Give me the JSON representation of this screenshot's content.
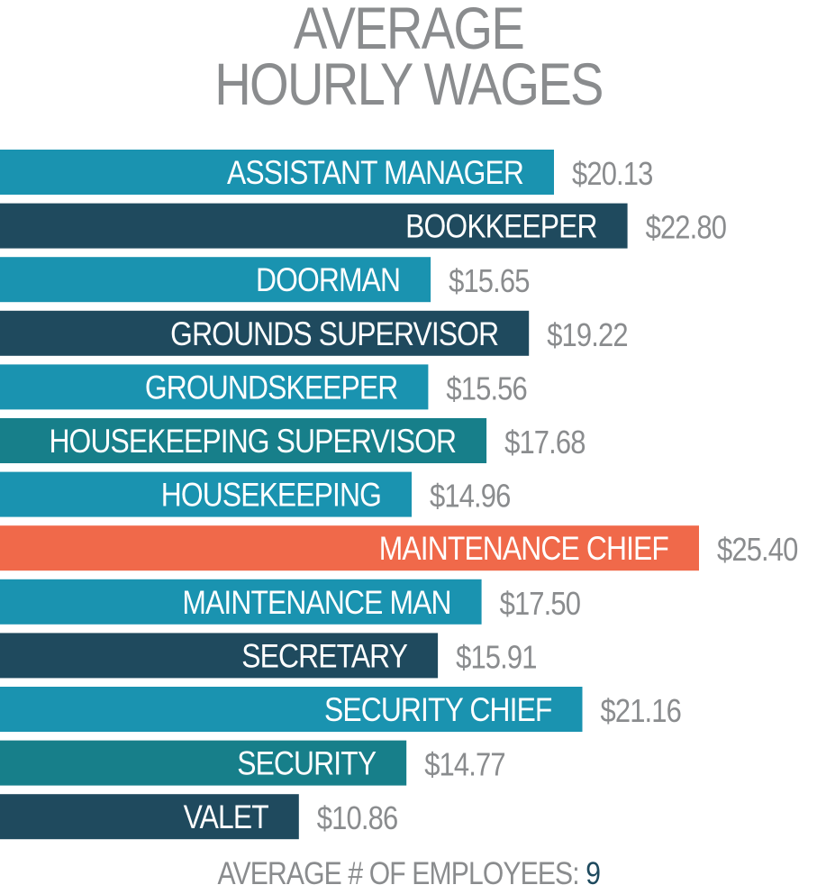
{
  "chart_data": {
    "type": "bar",
    "orientation": "horizontal",
    "title_lines": [
      "AVERAGE",
      "HOURLY WAGES"
    ],
    "categories": [
      "ASSISTANT MANAGER",
      "BOOKKEEPER",
      "DOORMAN",
      "GROUNDS SUPERVISOR",
      "GROUNDSKEEPER",
      "HOUSEKEEPING SUPERVISOR",
      "HOUSEKEEPING",
      "MAINTENANCE CHIEF",
      "MAINTENANCE MAN",
      "SECRETARY",
      "SECURITY CHIEF",
      "SECURITY",
      "VALET"
    ],
    "values": [
      20.13,
      22.8,
      15.65,
      19.22,
      15.56,
      17.68,
      14.96,
      25.4,
      17.5,
      15.91,
      21.16,
      14.77,
      10.86
    ],
    "value_labels": [
      "$20.13",
      "$22.80",
      "$15.65",
      "$19.22",
      "$15.56",
      "$17.68",
      "$14.96",
      "$25.40",
      "$17.50",
      "$15.91",
      "$21.16",
      "$14.77",
      "$10.86"
    ],
    "bar_colors": [
      "#1a93b0",
      "#1f4a5e",
      "#1a93b0",
      "#1f4a5e",
      "#1a93b0",
      "#177f8a",
      "#1a93b0",
      "#f0694a",
      "#1a93b0",
      "#1f4a5e",
      "#1a93b0",
      "#177f8a",
      "#1f4a5e"
    ],
    "highlight_color": "#f0694a",
    "value_label_color": "#8a8c8e",
    "xlabel": "",
    "ylabel": "",
    "grid": false,
    "legend": "none"
  },
  "footer": {
    "label": "AVERAGE # OF EMPLOYEES:",
    "value": "9"
  }
}
